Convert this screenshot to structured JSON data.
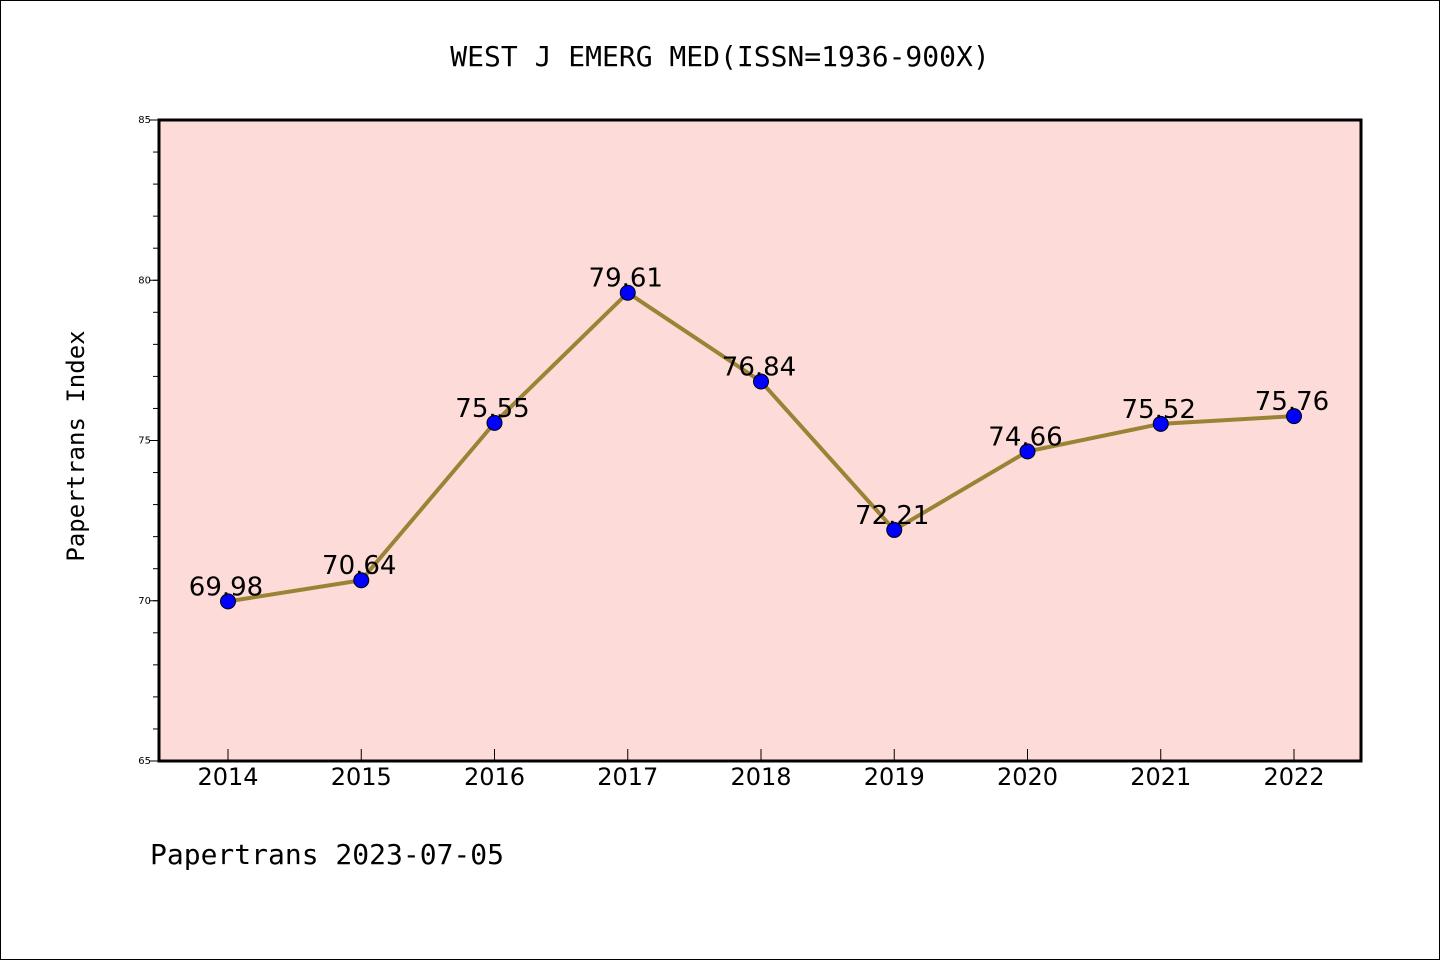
{
  "chart_data": {
    "type": "line",
    "title": "WEST J EMERG MED(ISSN=1936-900X)",
    "xlabel": "",
    "ylabel": "Papertrans Index",
    "categories": [
      "2014",
      "2015",
      "2016",
      "2017",
      "2018",
      "2019",
      "2020",
      "2021",
      "2022"
    ],
    "values": [
      69.98,
      70.64,
      75.55,
      79.61,
      76.84,
      72.21,
      74.66,
      75.52,
      75.76
    ],
    "data_labels": [
      "69.98",
      "70.64",
      "75.55",
      "79.61",
      "76.84",
      "72.21",
      "74.66",
      "75.52",
      "75.76"
    ],
    "ylim": [
      65,
      85
    ],
    "yticks": [
      65,
      70,
      75,
      80,
      85
    ],
    "grid": false,
    "colors": {
      "plot_background": "#fddbd8",
      "line": "#9b8335",
      "marker": "#0000ff",
      "axis": "#000000"
    }
  },
  "footer": "Papertrans 2023-07-05"
}
